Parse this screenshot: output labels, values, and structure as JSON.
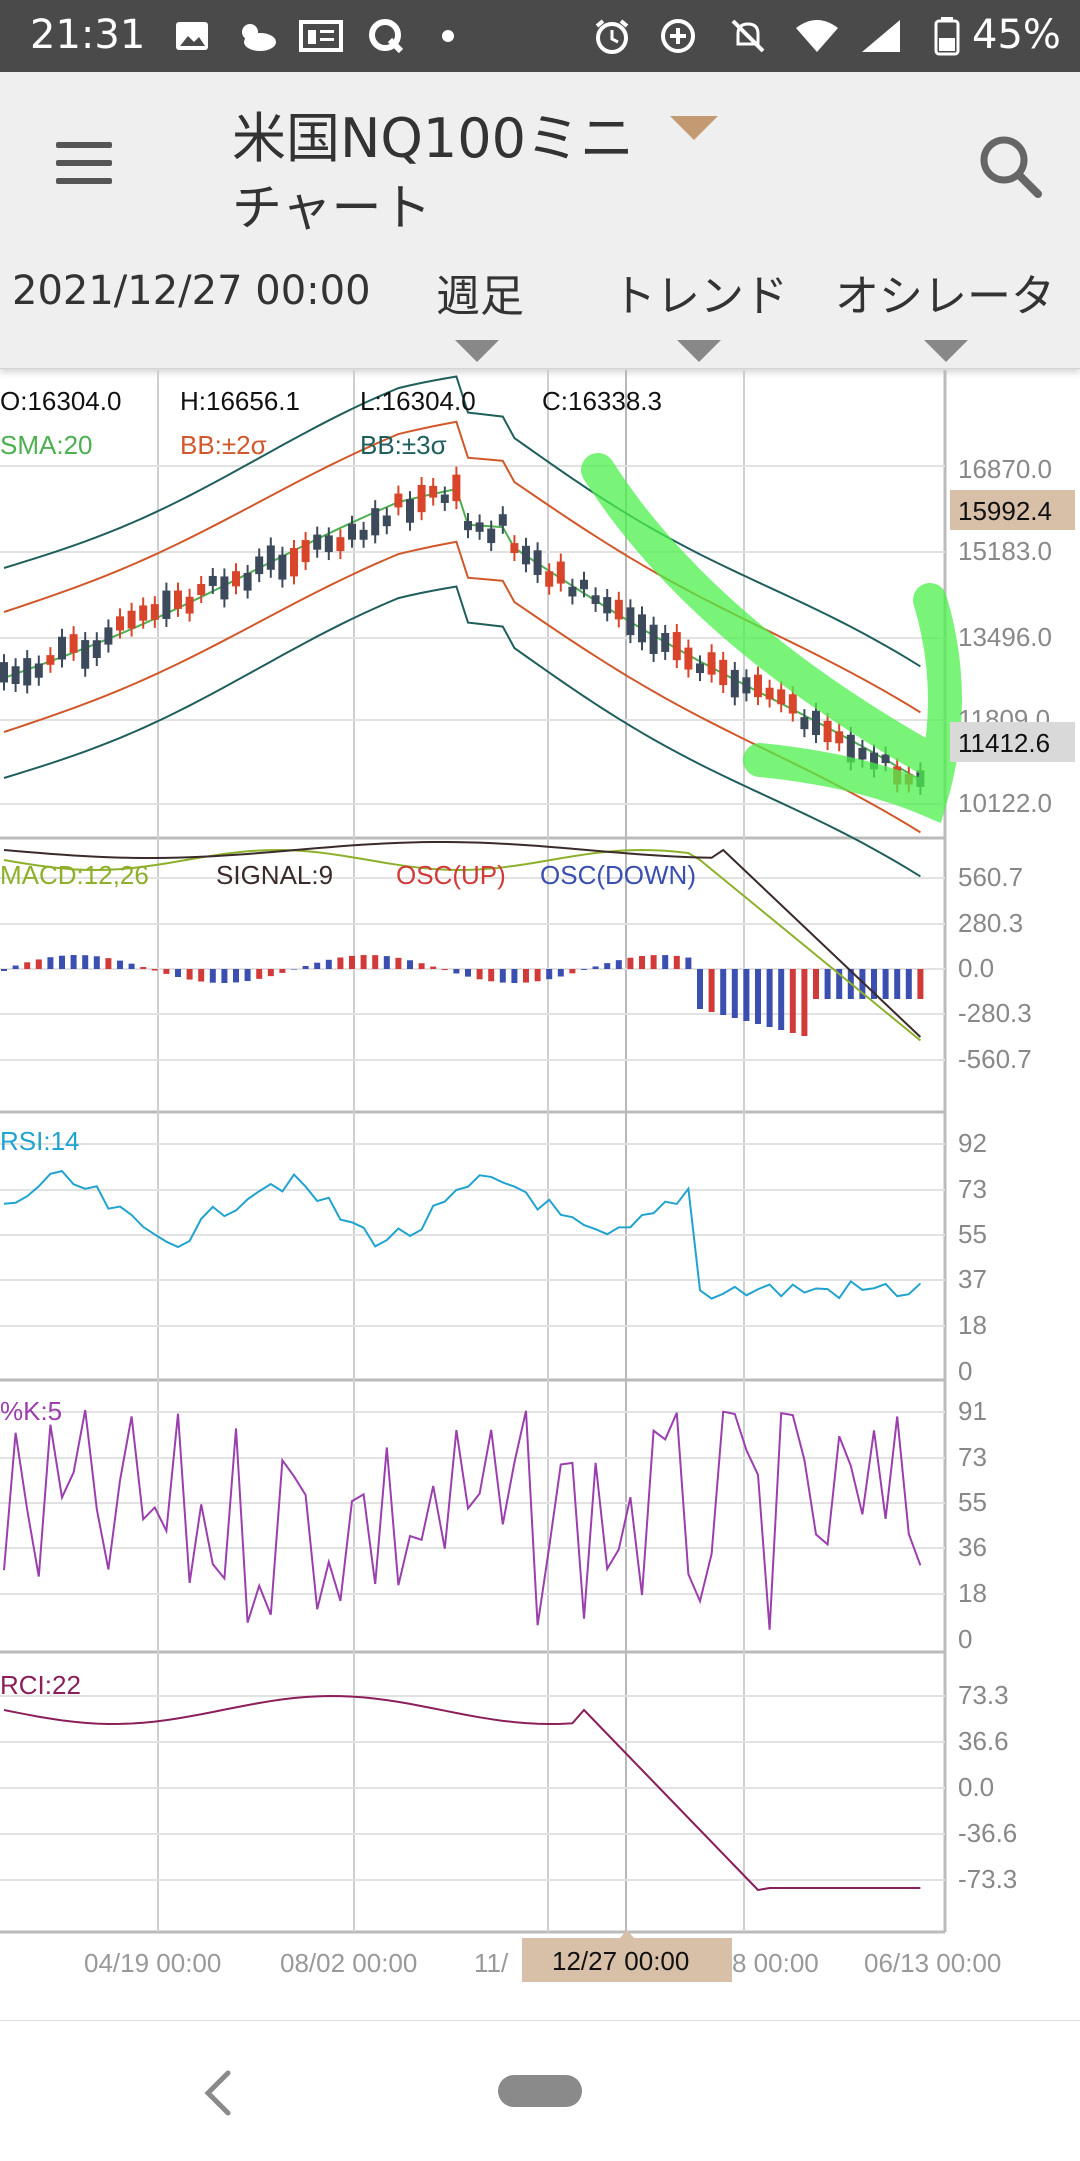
{
  "status_bar": {
    "time": "21:31",
    "battery": "45%",
    "icons": [
      "image-icon",
      "weather-icon",
      "news-icon",
      "q-app-icon",
      "dot-icon",
      "alarm-icon",
      "data-saver-icon",
      "mute-icon",
      "wifi-icon",
      "signal-icon",
      "battery-icon"
    ]
  },
  "app_bar": {
    "title": "米国NQ100ミニ",
    "subtitle": "チャート",
    "date": "2021/12/27 00:00",
    "timeframe": "週足",
    "trend": "トレンド",
    "oscillator": "オシレータ"
  },
  "chart": {
    "ohlc": {
      "o": "O:16304.0",
      "h": "H:16656.1",
      "l": "L:16304.0",
      "c": "C:16338.3"
    },
    "legend": {
      "sma": "SMA:20",
      "bb2": "BB:±2σ",
      "bb3": "BB:±3σ"
    },
    "price_ticks": [
      "16870.0",
      "15183.0",
      "13496.0",
      "11809.0",
      "10122.0"
    ],
    "price_badges": {
      "upper": "15992.4",
      "last": "11412.6"
    },
    "macd_legend": {
      "macd": "MACD:12,26",
      "signal": "SIGNAL:9",
      "osc_up": "OSC(UP)",
      "osc_down": "OSC(DOWN)"
    },
    "macd_ticks": [
      "560.7",
      "280.3",
      "0.0",
      "-280.3",
      "-560.7"
    ],
    "rsi_label": "RSI:14",
    "rsi_ticks": [
      "92",
      "73",
      "55",
      "37",
      "18",
      "0"
    ],
    "stoch_label": "%K:5",
    "stoch_ticks": [
      "91",
      "73",
      "55",
      "36",
      "18",
      "0"
    ],
    "rci_label": "RCI:22",
    "rci_ticks": [
      "73.3",
      "36.6",
      "0.0",
      "-36.6",
      "-73.3"
    ],
    "x_ticks": [
      "04/19 00:00",
      "08/02 00:00",
      "11/",
      "8 00:00",
      "06/13 00:00"
    ],
    "x_cursor": "12/27 00:00",
    "colors": {
      "up": "#d9452b",
      "down": "#3d4a5c",
      "sma": "#4caf50",
      "bb2": "#d0582a",
      "bb3": "#1f5f5b",
      "macd": "#8db02a",
      "signal": "#3b2a2a",
      "osc_up": "#d23a3a",
      "osc_down": "#3a4fb0",
      "rsi": "#21a3cf",
      "stoch": "#9b3fae",
      "rci": "#8a1f5a",
      "highlight": "#4cf04c"
    }
  }
}
